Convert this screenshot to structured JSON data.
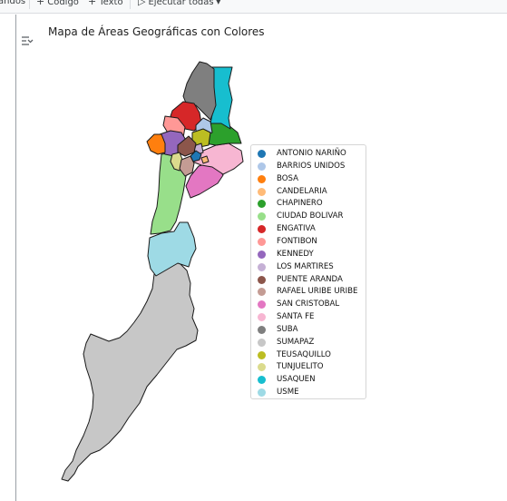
{
  "toolbar": {
    "items": [
      {
        "icon": "partial-left-label",
        "label": "andos"
      },
      {
        "icon": "plus-icon",
        "glyph": "+",
        "label": "Código"
      },
      {
        "icon": "plus-icon",
        "glyph": "+",
        "label": "Texto"
      },
      {
        "icon": "play-icon",
        "glyph": "▷",
        "label": "Ejecutar todas"
      },
      {
        "icon": "chevron-down-icon",
        "glyph": "▾",
        "label": ""
      }
    ]
  },
  "output": {
    "icon": "output-toggle-icon"
  },
  "chart_data": {
    "type": "choropleth",
    "title": "Mapa de Áreas Geográficas con Colores",
    "legend_placement": "right",
    "categories": [
      {
        "name": "ANTONIO NARIÑO",
        "color": "#1f77b4"
      },
      {
        "name": "BARRIOS UNIDOS",
        "color": "#aec7e8"
      },
      {
        "name": "BOSA",
        "color": "#ff7f0e"
      },
      {
        "name": "CANDELARIA",
        "color": "#ffbb78"
      },
      {
        "name": "CHAPINERO",
        "color": "#2ca02c"
      },
      {
        "name": "CIUDAD BOLIVAR",
        "color": "#98df8a"
      },
      {
        "name": "ENGATIVA",
        "color": "#d62728"
      },
      {
        "name": "FONTIBON",
        "color": "#ff9896"
      },
      {
        "name": "KENNEDY",
        "color": "#9467bd"
      },
      {
        "name": "LOS MARTIRES",
        "color": "#c5b0d5"
      },
      {
        "name": "PUENTE ARANDA",
        "color": "#8c564b"
      },
      {
        "name": "RAFAEL URIBE URIBE",
        "color": "#c49c94"
      },
      {
        "name": "SAN CRISTOBAL",
        "color": "#e377c2"
      },
      {
        "name": "SANTA FE",
        "color": "#f7b6d2"
      },
      {
        "name": "SUBA",
        "color": "#7f7f7f"
      },
      {
        "name": "SUMAPAZ",
        "color": "#c7c7c7"
      },
      {
        "name": "TEUSAQUILLO",
        "color": "#bcbd22"
      },
      {
        "name": "TUNJUELITO",
        "color": "#dbdb8d"
      },
      {
        "name": "USAQUEN",
        "color": "#17becf"
      },
      {
        "name": "USME",
        "color": "#9edae5"
      }
    ]
  }
}
